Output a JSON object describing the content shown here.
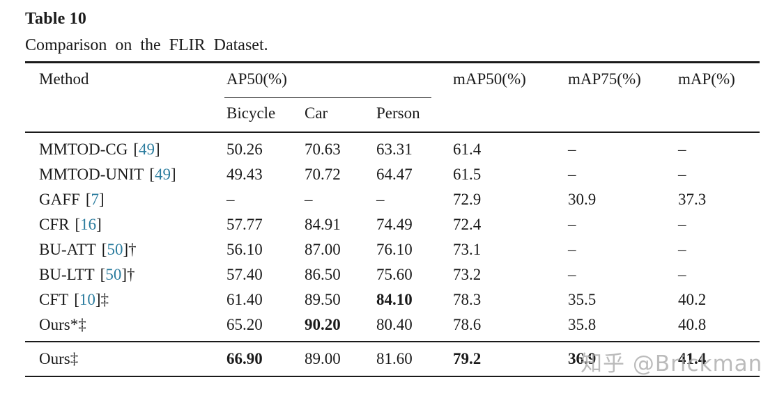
{
  "title": "Table 10",
  "caption": "Comparison on the FLIR Dataset.",
  "header": {
    "method": "Method",
    "ap50_group": "AP50(%)",
    "bicycle": "Bicycle",
    "car": "Car",
    "person": "Person",
    "map50": "mAP50(%)",
    "map75": "mAP75(%)",
    "map": "mAP(%)"
  },
  "rows": [
    {
      "name": "MMTOD-CG",
      "open": "[",
      "cite": "49",
      "close": "]",
      "suffix": "",
      "bicycle": "50.26",
      "car": "70.63",
      "person": "63.31",
      "map50": "61.4",
      "map75": "–",
      "map": "–"
    },
    {
      "name": "MMTOD-UNIT",
      "open": "[",
      "cite": "49",
      "close": "]",
      "suffix": "",
      "bicycle": "49.43",
      "car": "70.72",
      "person": "64.47",
      "map50": "61.5",
      "map75": "–",
      "map": "–"
    },
    {
      "name": "GAFF",
      "open": "[",
      "cite": "7",
      "close": "]",
      "suffix": "",
      "bicycle": "–",
      "car": "–",
      "person": "–",
      "map50": "72.9",
      "map75": "30.9",
      "map": "37.3"
    },
    {
      "name": "CFR",
      "open": "[",
      "cite": "16",
      "close": "]",
      "suffix": "",
      "bicycle": "57.77",
      "car": "84.91",
      "person": "74.49",
      "map50": "72.4",
      "map75": "–",
      "map": "–"
    },
    {
      "name": "BU-ATT",
      "open": "[",
      "cite": "50",
      "close": "]",
      "suffix": "†",
      "bicycle": "56.10",
      "car": "87.00",
      "person": "76.10",
      "map50": "73.1",
      "map75": "–",
      "map": "–"
    },
    {
      "name": "BU-LTT",
      "open": "[",
      "cite": "50",
      "close": "]",
      "suffix": "†",
      "bicycle": "57.40",
      "car": "86.50",
      "person": "75.60",
      "map50": "73.2",
      "map75": "–",
      "map": "–"
    },
    {
      "name": "CFT",
      "open": "[",
      "cite": "10",
      "close": "]",
      "suffix": "‡",
      "bicycle": "61.40",
      "car": "89.50",
      "person": "84.10",
      "map50": "78.3",
      "map75": "35.5",
      "map": "40.2"
    },
    {
      "name": "Ours",
      "open": "",
      "cite": "",
      "close": "",
      "suffix": "*‡",
      "bicycle": "65.20",
      "car": "90.20",
      "person": "80.40",
      "map50": "78.6",
      "map75": "35.8",
      "map": "40.8"
    }
  ],
  "final_row": {
    "name": "Ours",
    "open": "",
    "cite": "",
    "close": "",
    "suffix": "‡",
    "bicycle": "66.90",
    "car": "89.00",
    "person": "81.60",
    "map50": "79.2",
    "map75": "36.9",
    "map": "41.4"
  },
  "watermark": "知乎 @Brickman",
  "colors": {
    "text": "#1a1a1a",
    "citation": "#2b7c9e",
    "rule": "#1a1a1a",
    "watermark": "#ababab",
    "background": "#ffffff"
  }
}
